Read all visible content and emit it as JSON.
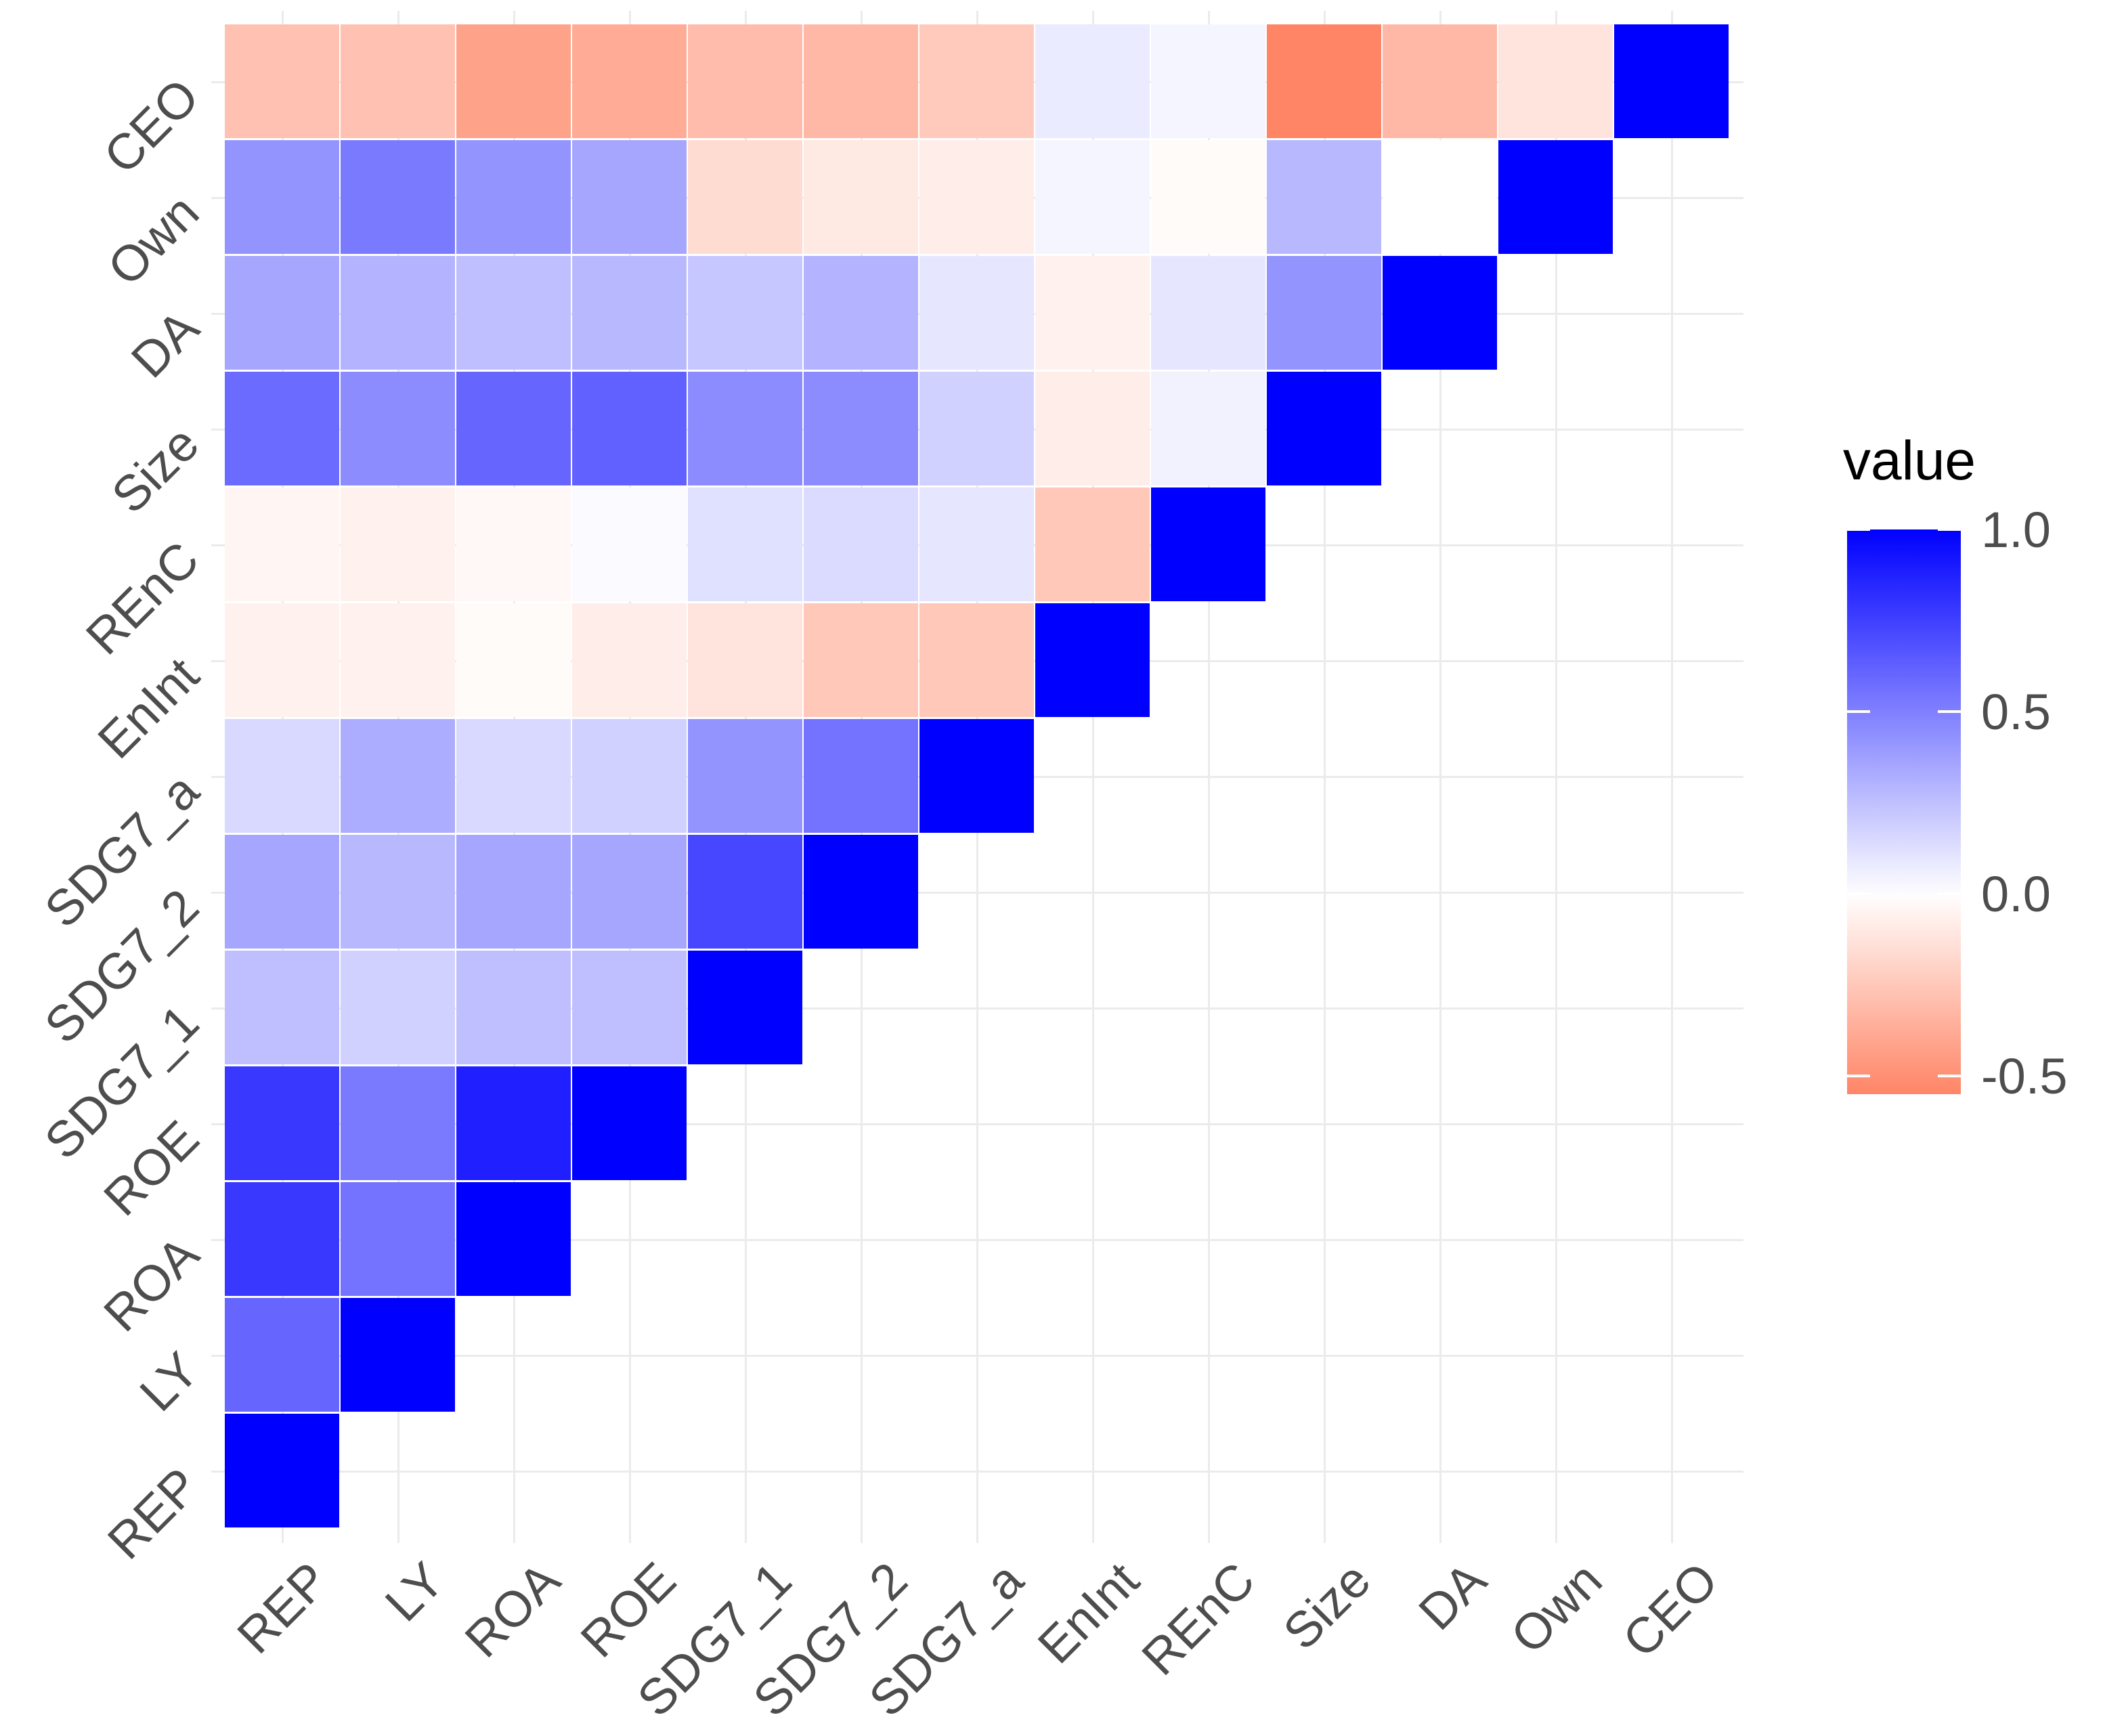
{
  "chart_data": {
    "type": "heatmap",
    "title": "",
    "xlabel": "",
    "ylabel": "",
    "variables": [
      "REP",
      "LY",
      "ROA",
      "ROE",
      "SDG7_1",
      "SDG7_2",
      "SDG7_a",
      "EnInt",
      "REnC",
      "Size",
      "DA",
      "Own",
      "CEO"
    ],
    "triangle": "lower (correlation matrix, diagonal = 1.0)",
    "correlations": [
      {
        "var": "REP",
        "values": [
          1.0
        ]
      },
      {
        "var": "LY",
        "values": [
          0.6,
          1.0
        ]
      },
      {
        "var": "ROA",
        "values": [
          0.78,
          0.55,
          1.0
        ]
      },
      {
        "var": "ROE",
        "values": [
          0.78,
          0.52,
          0.88,
          1.0
        ]
      },
      {
        "var": "SDG7_1",
        "values": [
          0.25,
          0.18,
          0.25,
          0.25,
          1.0
        ]
      },
      {
        "var": "SDG7_2",
        "values": [
          0.35,
          0.28,
          0.35,
          0.35,
          0.72,
          1.0
        ]
      },
      {
        "var": "SDG7_a",
        "values": [
          0.15,
          0.32,
          0.15,
          0.18,
          0.42,
          0.55,
          1.0
        ]
      },
      {
        "var": "EnInt",
        "values": [
          -0.06,
          -0.06,
          -0.02,
          -0.08,
          -0.12,
          -0.25,
          -0.25,
          1.0
        ]
      },
      {
        "var": "REnC",
        "values": [
          -0.04,
          -0.06,
          -0.03,
          0.02,
          0.12,
          0.14,
          0.1,
          -0.25,
          1.0
        ]
      },
      {
        "var": "Size",
        "values": [
          0.58,
          0.45,
          0.6,
          0.62,
          0.45,
          0.45,
          0.18,
          -0.08,
          0.05,
          1.0
        ]
      },
      {
        "var": "DA",
        "values": [
          0.35,
          0.3,
          0.25,
          0.28,
          0.22,
          0.3,
          0.1,
          -0.06,
          0.1,
          0.42,
          1.0
        ]
      },
      {
        "var": "Own",
        "values": [
          0.42,
          0.52,
          0.42,
          0.35,
          -0.16,
          -0.1,
          -0.08,
          0.04,
          -0.02,
          0.28,
          0.0,
          1.0
        ]
      },
      {
        "var": "CEO",
        "values": [
          -0.28,
          -0.28,
          -0.42,
          -0.38,
          -0.3,
          -0.32,
          -0.24,
          0.08,
          0.04,
          -0.55,
          -0.32,
          -0.12,
          1.0
        ]
      }
    ],
    "color_scale": {
      "low": "#FF8566",
      "mid": "#FFFFFF",
      "high": "#0000FF",
      "midpoint": 0.0,
      "limits": [
        -0.55,
        1.0
      ]
    },
    "legend": {
      "title": "value",
      "position": "right",
      "breaks": [
        1.0,
        0.5,
        0.0,
        -0.5
      ],
      "break_labels": [
        "1.0",
        "0.5",
        "0.0",
        "-0.5"
      ]
    },
    "grid": true
  }
}
